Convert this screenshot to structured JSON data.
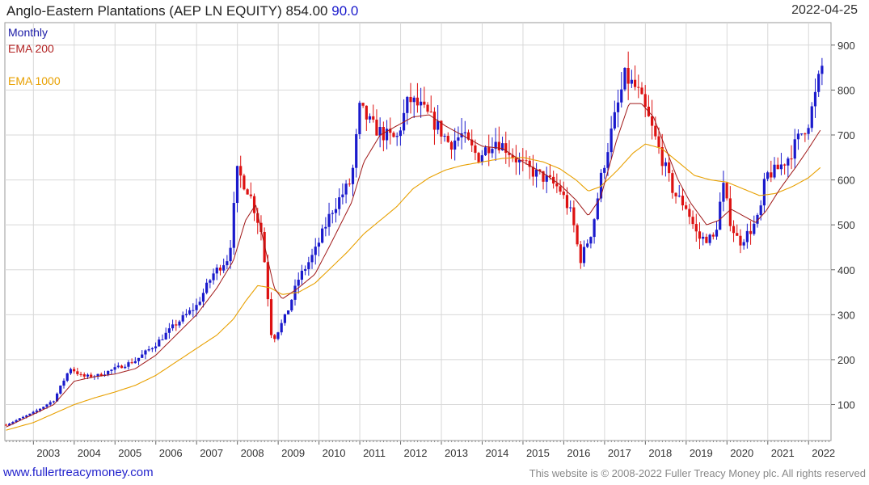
{
  "header": {
    "title_main": "Anglo-Eastern Plantations (AEP LN EQUITY) 854.00",
    "title_change": "90.0",
    "date": "2022-04-25"
  },
  "legend": {
    "monthly": "Monthly",
    "ema200": "EMA 200",
    "ema1000": "EMA 1000"
  },
  "footer": {
    "website": "www.fullertreacymoney.com",
    "copyright": "This website is © 2008-2022 Fuller Treacy Money plc. All rights reserved"
  },
  "colors": {
    "up": "#1a1acc",
    "down": "#dd1111",
    "ema200": "#a01818",
    "ema1000": "#e8a000",
    "grid": "#d8d8d8"
  },
  "chart_data": {
    "type": "candlestick",
    "title": "Anglo-Eastern Plantations (AEP LN EQUITY)",
    "xlabel": "",
    "ylabel": "",
    "ylim": [
      20,
      950
    ],
    "xlim": [
      2002.3,
      2022.55
    ],
    "y_ticks": [
      100,
      200,
      300,
      400,
      500,
      600,
      700,
      800,
      900
    ],
    "x_ticks": [
      2003,
      2004,
      2005,
      2006,
      2007,
      2008,
      2009,
      2010,
      2011,
      2012,
      2013,
      2014,
      2015,
      2016,
      2017,
      2018,
      2019,
      2020,
      2021,
      2022
    ],
    "x_tick_labels": [
      "2003",
      "2004",
      "2005",
      "2006",
      "2007",
      "2008",
      "2009",
      "2010",
      "2011",
      "2012",
      "2013",
      "2014",
      "2015",
      "2016",
      "2017",
      "2018",
      "2019",
      "2020",
      "2021",
      "2022"
    ],
    "grid": true,
    "close_anchors": [
      [
        2002.33,
        55
      ],
      [
        2003.0,
        82
      ],
      [
        2003.5,
        110
      ],
      [
        2003.9,
        182
      ],
      [
        2004.2,
        162
      ],
      [
        2004.6,
        165
      ],
      [
        2005.0,
        180
      ],
      [
        2005.5,
        198
      ],
      [
        2006.0,
        235
      ],
      [
        2006.5,
        280
      ],
      [
        2007.0,
        320
      ],
      [
        2007.4,
        390
      ],
      [
        2007.8,
        430
      ],
      [
        2008.0,
        620
      ],
      [
        2008.3,
        570
      ],
      [
        2008.6,
        480
      ],
      [
        2008.85,
        240
      ],
      [
        2009.2,
        300
      ],
      [
        2009.5,
        380
      ],
      [
        2009.9,
        440
      ],
      [
        2010.3,
        530
      ],
      [
        2010.8,
        600
      ],
      [
        2011.0,
        760
      ],
      [
        2011.3,
        720
      ],
      [
        2011.6,
        700
      ],
      [
        2011.9,
        690
      ],
      [
        2012.2,
        780
      ],
      [
        2012.5,
        760
      ],
      [
        2012.9,
        720
      ],
      [
        2013.2,
        680
      ],
      [
        2013.5,
        700
      ],
      [
        2013.9,
        650
      ],
      [
        2014.3,
        690
      ],
      [
        2014.6,
        670
      ],
      [
        2014.9,
        640
      ],
      [
        2015.2,
        620
      ],
      [
        2015.6,
        600
      ],
      [
        2015.9,
        580
      ],
      [
        2016.2,
        520
      ],
      [
        2016.4,
        420
      ],
      [
        2016.7,
        490
      ],
      [
        2016.9,
        600
      ],
      [
        2017.2,
        720
      ],
      [
        2017.5,
        830
      ],
      [
        2017.8,
        800
      ],
      [
        2018.1,
        730
      ],
      [
        2018.4,
        650
      ],
      [
        2018.7,
        570
      ],
      [
        2019.0,
        540
      ],
      [
        2019.3,
        470
      ],
      [
        2019.7,
        470
      ],
      [
        2019.9,
        590
      ],
      [
        2020.1,
        500
      ],
      [
        2020.3,
        460
      ],
      [
        2020.6,
        490
      ],
      [
        2020.8,
        520
      ],
      [
        2020.95,
        610
      ],
      [
        2021.2,
        620
      ],
      [
        2021.5,
        650
      ],
      [
        2021.8,
        700
      ],
      [
        2022.0,
        730
      ],
      [
        2022.2,
        800
      ],
      [
        2022.32,
        854
      ]
    ],
    "ema200_anchors": [
      [
        2002.33,
        50
      ],
      [
        2003.5,
        100
      ],
      [
        2004.0,
        152
      ],
      [
        2004.5,
        162
      ],
      [
        2005.0,
        168
      ],
      [
        2005.5,
        180
      ],
      [
        2006.0,
        210
      ],
      [
        2006.5,
        255
      ],
      [
        2007.0,
        300
      ],
      [
        2007.5,
        360
      ],
      [
        2007.9,
        420
      ],
      [
        2008.2,
        510
      ],
      [
        2008.45,
        545
      ],
      [
        2008.65,
        460
      ],
      [
        2008.9,
        360
      ],
      [
        2009.1,
        335
      ],
      [
        2009.5,
        360
      ],
      [
        2009.9,
        390
      ],
      [
        2010.3,
        460
      ],
      [
        2010.8,
        550
      ],
      [
        2011.1,
        640
      ],
      [
        2011.5,
        700
      ],
      [
        2011.9,
        720
      ],
      [
        2012.3,
        740
      ],
      [
        2012.7,
        745
      ],
      [
        2013.1,
        720
      ],
      [
        2013.5,
        700
      ],
      [
        2014.0,
        675
      ],
      [
        2014.5,
        670
      ],
      [
        2015.0,
        640
      ],
      [
        2015.5,
        615
      ],
      [
        2015.9,
        590
      ],
      [
        2016.3,
        555
      ],
      [
        2016.6,
        520
      ],
      [
        2016.9,
        560
      ],
      [
        2017.3,
        690
      ],
      [
        2017.6,
        770
      ],
      [
        2017.9,
        770
      ],
      [
        2018.2,
        740
      ],
      [
        2018.5,
        670
      ],
      [
        2018.8,
        600
      ],
      [
        2019.1,
        550
      ],
      [
        2019.5,
        500
      ],
      [
        2019.8,
        510
      ],
      [
        2020.1,
        535
      ],
      [
        2020.4,
        520
      ],
      [
        2020.7,
        505
      ],
      [
        2020.95,
        530
      ],
      [
        2021.3,
        580
      ],
      [
        2021.7,
        630
      ],
      [
        2022.0,
        670
      ],
      [
        2022.32,
        715
      ]
    ],
    "ema1000_anchors": [
      [
        2002.33,
        43
      ],
      [
        2003.0,
        60
      ],
      [
        2003.5,
        80
      ],
      [
        2004.0,
        100
      ],
      [
        2004.5,
        115
      ],
      [
        2005.0,
        128
      ],
      [
        2005.5,
        143
      ],
      [
        2006.0,
        165
      ],
      [
        2006.5,
        195
      ],
      [
        2007.0,
        225
      ],
      [
        2007.5,
        255
      ],
      [
        2007.9,
        290
      ],
      [
        2008.2,
        330
      ],
      [
        2008.5,
        365
      ],
      [
        2008.8,
        360
      ],
      [
        2009.1,
        345
      ],
      [
        2009.5,
        350
      ],
      [
        2009.9,
        370
      ],
      [
        2010.3,
        405
      ],
      [
        2010.7,
        440
      ],
      [
        2011.1,
        480
      ],
      [
        2011.5,
        510
      ],
      [
        2011.9,
        540
      ],
      [
        2012.3,
        580
      ],
      [
        2012.7,
        605
      ],
      [
        2013.1,
        622
      ],
      [
        2013.5,
        632
      ],
      [
        2014.0,
        640
      ],
      [
        2014.5,
        648
      ],
      [
        2015.0,
        650
      ],
      [
        2015.5,
        640
      ],
      [
        2015.9,
        625
      ],
      [
        2016.3,
        600
      ],
      [
        2016.6,
        575
      ],
      [
        2016.9,
        585
      ],
      [
        2017.3,
        620
      ],
      [
        2017.7,
        660
      ],
      [
        2018.0,
        680
      ],
      [
        2018.4,
        670
      ],
      [
        2018.8,
        640
      ],
      [
        2019.2,
        610
      ],
      [
        2019.6,
        600
      ],
      [
        2020.0,
        595
      ],
      [
        2020.4,
        580
      ],
      [
        2020.8,
        565
      ],
      [
        2021.2,
        570
      ],
      [
        2021.6,
        585
      ],
      [
        2022.0,
        605
      ],
      [
        2022.32,
        630
      ]
    ]
  }
}
